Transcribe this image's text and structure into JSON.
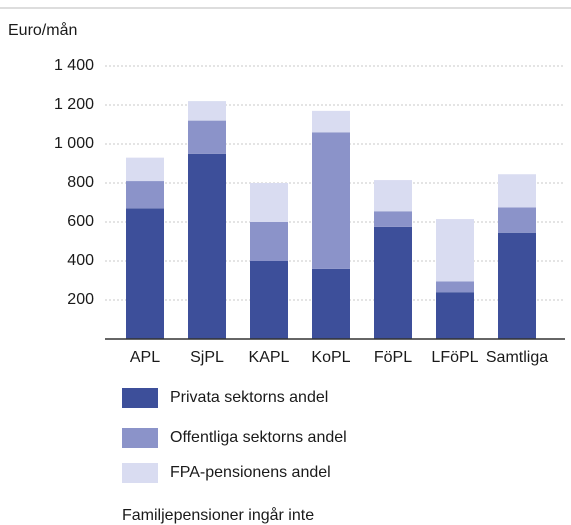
{
  "chart_data": {
    "type": "stacked_bar",
    "title": "Euro/mån",
    "categories": [
      "APL",
      "SjPL",
      "KAPL",
      "KoPL",
      "FöPL",
      "LFöPL",
      "Samtliga"
    ],
    "series": [
      {
        "name": "Privata sektorns andel",
        "color": "#3d4f9a",
        "values": [
          670,
          950,
          400,
          360,
          575,
          240,
          545
        ]
      },
      {
        "name": "Offentliga sektorns andel",
        "color": "#8b93c9",
        "values": [
          140,
          170,
          200,
          700,
          80,
          55,
          130
        ]
      },
      {
        "name": "FPA-pensionens andel",
        "color": "#d9dcf1",
        "values": [
          120,
          100,
          200,
          110,
          160,
          320,
          170
        ]
      }
    ],
    "ylim": [
      0,
      1400
    ],
    "yticks": [
      200,
      400,
      600,
      800,
      {
        "value": 1000,
        "label": "1 000"
      },
      {
        "value": 1200,
        "label": "1 200"
      },
      {
        "value": 1400,
        "label": "1 400"
      }
    ],
    "grid": true,
    "note": "Familjepensioner ingår inte"
  }
}
